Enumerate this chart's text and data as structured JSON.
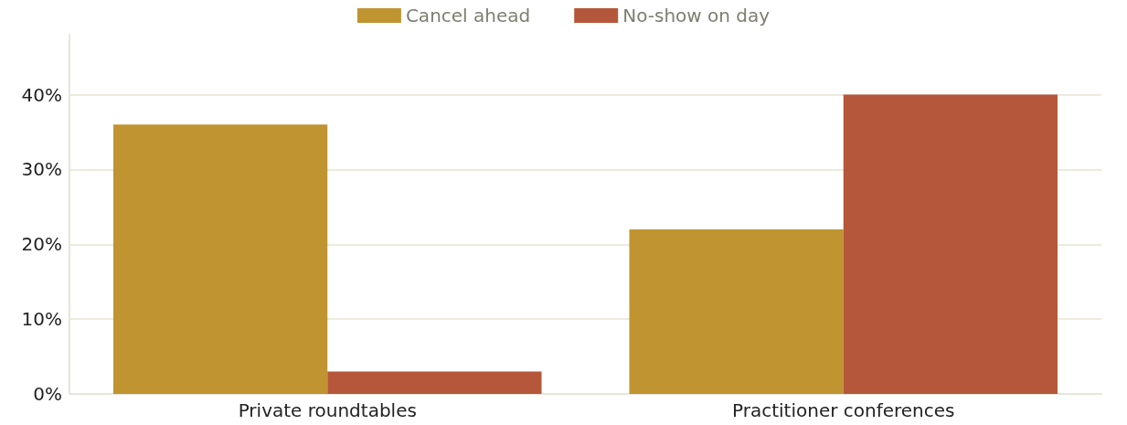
{
  "chart_data": {
    "type": "bar",
    "categories": [
      "Private roundtables",
      "Practitioner conferences"
    ],
    "series": [
      {
        "name": "Cancel ahead",
        "color": "#bf9431",
        "values": [
          36,
          22
        ]
      },
      {
        "name": "No-show on day",
        "color": "#b5573a",
        "values": [
          3,
          40
        ]
      }
    ],
    "ylim": [
      0,
      48
    ],
    "yticks": [
      {
        "value": 0,
        "label": "0%"
      },
      {
        "value": 10,
        "label": "10%"
      },
      {
        "value": 20,
        "label": "20%"
      },
      {
        "value": 30,
        "label": "30%"
      },
      {
        "value": 40,
        "label": "40%"
      }
    ],
    "grid": "y",
    "legend": "top"
  }
}
